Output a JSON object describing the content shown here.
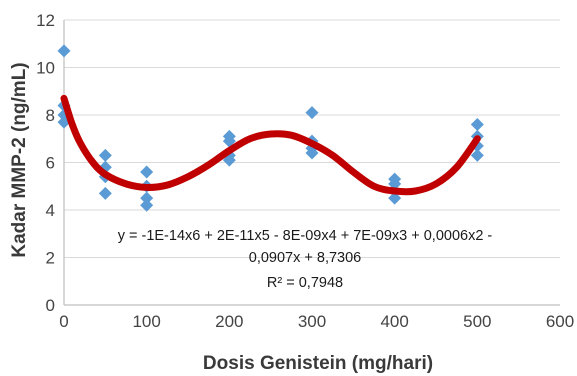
{
  "chart_data": {
    "type": "scatter",
    "xlabel": "Dosis Genistein (mg/hari)",
    "ylabel": "Kadar MMP-2 (ng/mL)",
    "xlim": [
      0,
      600
    ],
    "ylim": [
      0,
      12
    ],
    "xticks": [
      "0",
      "100",
      "200",
      "300",
      "400",
      "500",
      "600"
    ],
    "yticks": [
      "0",
      "2",
      "4",
      "6",
      "8",
      "10",
      "12"
    ],
    "grid": "horizontal",
    "series": [
      {
        "marker": "diamond",
        "color": "#5b9bd5",
        "points": [
          {
            "x": 0,
            "y": 10.7
          },
          {
            "x": 0,
            "y": 8.4
          },
          {
            "x": 0,
            "y": 8.0
          },
          {
            "x": 0,
            "y": 7.7
          },
          {
            "x": 50,
            "y": 6.3
          },
          {
            "x": 50,
            "y": 5.8
          },
          {
            "x": 50,
            "y": 5.4
          },
          {
            "x": 50,
            "y": 4.7
          },
          {
            "x": 100,
            "y": 5.6
          },
          {
            "x": 100,
            "y": 5.0
          },
          {
            "x": 100,
            "y": 4.5
          },
          {
            "x": 100,
            "y": 4.2
          },
          {
            "x": 200,
            "y": 7.1
          },
          {
            "x": 200,
            "y": 6.9
          },
          {
            "x": 200,
            "y": 6.3
          },
          {
            "x": 200,
            "y": 6.1
          },
          {
            "x": 300,
            "y": 8.1
          },
          {
            "x": 300,
            "y": 6.9
          },
          {
            "x": 300,
            "y": 6.6
          },
          {
            "x": 300,
            "y": 6.4
          },
          {
            "x": 400,
            "y": 5.3
          },
          {
            "x": 400,
            "y": 5.1
          },
          {
            "x": 400,
            "y": 4.8
          },
          {
            "x": 400,
            "y": 4.5
          },
          {
            "x": 500,
            "y": 7.6
          },
          {
            "x": 500,
            "y": 7.1
          },
          {
            "x": 500,
            "y": 6.7
          },
          {
            "x": 500,
            "y": 6.3
          }
        ]
      }
    ],
    "trendline": {
      "type": "polynomial",
      "color": "#c00000",
      "x_range": [
        0,
        500
      ],
      "points": [
        {
          "x": 0,
          "y": 8.7
        },
        {
          "x": 10,
          "y": 7.6
        },
        {
          "x": 20,
          "y": 6.8
        },
        {
          "x": 35,
          "y": 6.0
        },
        {
          "x": 50,
          "y": 5.5
        },
        {
          "x": 75,
          "y": 5.1
        },
        {
          "x": 100,
          "y": 4.95
        },
        {
          "x": 125,
          "y": 5.05
        },
        {
          "x": 150,
          "y": 5.4
        },
        {
          "x": 175,
          "y": 5.9
        },
        {
          "x": 200,
          "y": 6.5
        },
        {
          "x": 225,
          "y": 7.0
        },
        {
          "x": 250,
          "y": 7.2
        },
        {
          "x": 275,
          "y": 7.15
        },
        {
          "x": 300,
          "y": 6.8
        },
        {
          "x": 325,
          "y": 6.3
        },
        {
          "x": 350,
          "y": 5.6
        },
        {
          "x": 375,
          "y": 5.0
        },
        {
          "x": 400,
          "y": 4.8
        },
        {
          "x": 425,
          "y": 4.8
        },
        {
          "x": 450,
          "y": 5.1
        },
        {
          "x": 475,
          "y": 5.8
        },
        {
          "x": 500,
          "y": 7.0
        }
      ]
    },
    "equation": {
      "line1": "y = -1E-14x6 + 2E-11x5 - 8E-09x4 + 7E-09x3 + 0,0006x2 -",
      "line2": "0,0907x + 8,7306",
      "r2": "R² = 0,7948"
    }
  }
}
